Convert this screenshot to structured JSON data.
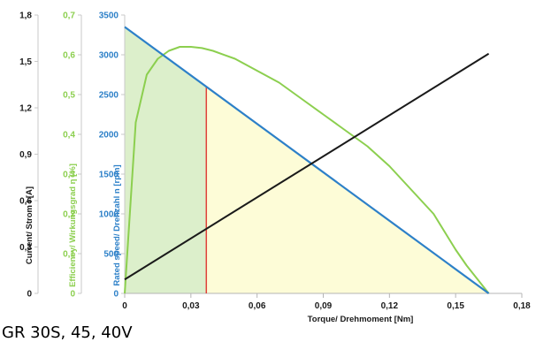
{
  "caption": "GR 30S, 45, 40V",
  "colors": {
    "current": "#1a1a1a",
    "efficiency": "#8ccf4f",
    "speed": "#2d80c8",
    "marker": "#e0423a",
    "fill_green": "#dcefcb",
    "fill_yellow": "#fdfcd7"
  },
  "chart_data": {
    "type": "line",
    "xlabel": "Torque/ Drehmoment [Nm]",
    "xlim": [
      0,
      0.18
    ],
    "x_ticks": [
      "0",
      "0,03",
      "0,06",
      "0,09",
      "0,12",
      "0,15",
      "0,18"
    ],
    "axes": {
      "current": {
        "label": "Current/ Strom I [A]",
        "ylim": [
          0,
          1.8
        ],
        "ticks": [
          "0",
          "0,3",
          "0,6",
          "0,9",
          "1,2",
          "1,5",
          "1,8"
        ]
      },
      "efficiency": {
        "label": "Efficiency/ Wirkungsgrad η [%]",
        "ylim": [
          0,
          0.7
        ],
        "ticks": [
          "0",
          "0,1",
          "0,2",
          "0,3",
          "0,4",
          "0,5",
          "0,6",
          "0,7"
        ]
      },
      "speed": {
        "label": "Rated speed/ Drehzahl n [rpm]",
        "ylim": [
          0,
          3500
        ],
        "ticks": [
          "0",
          "500",
          "1000",
          "1500",
          "2000",
          "2500",
          "3000",
          "3500"
        ]
      }
    },
    "series": [
      {
        "key": "speed",
        "axis": "speed",
        "x": [
          0,
          0.165
        ],
        "y": [
          3350,
          0
        ]
      },
      {
        "key": "current",
        "axis": "current",
        "x": [
          0,
          0.165
        ],
        "y": [
          0.09,
          1.55
        ]
      },
      {
        "key": "efficiency",
        "axis": "efficiency",
        "x": [
          0,
          0.005,
          0.01,
          0.015,
          0.02,
          0.025,
          0.03,
          0.035,
          0.04,
          0.05,
          0.06,
          0.07,
          0.08,
          0.09,
          0.1,
          0.11,
          0.12,
          0.13,
          0.14,
          0.15,
          0.155,
          0.16,
          0.165
        ],
        "y": [
          0,
          0.43,
          0.55,
          0.59,
          0.61,
          0.62,
          0.62,
          0.617,
          0.61,
          0.59,
          0.56,
          0.53,
          0.49,
          0.45,
          0.41,
          0.37,
          0.32,
          0.26,
          0.2,
          0.11,
          0.07,
          0.035,
          0
        ]
      }
    ],
    "marker_x": 0.037,
    "grid": false,
    "legend": "none"
  }
}
